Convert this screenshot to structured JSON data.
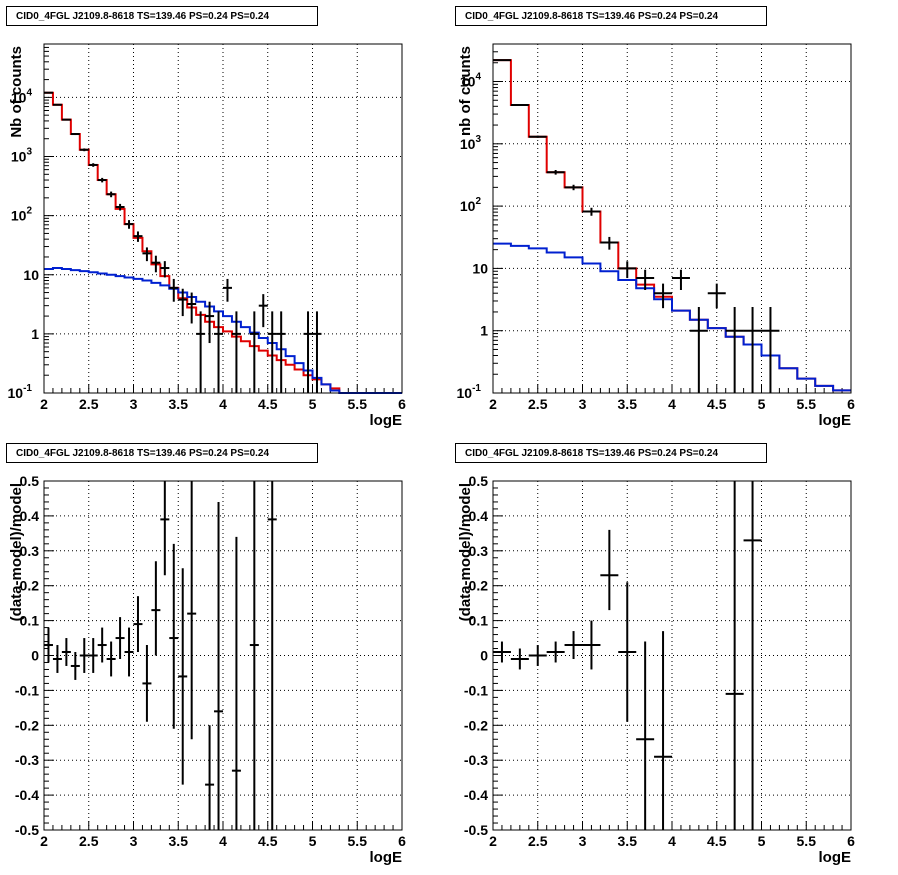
{
  "colors": {
    "data": "#000000",
    "total_model": "#e00000",
    "background_model": "#0020d0",
    "grid": "#000000"
  },
  "chart_data": [
    {
      "type": "line",
      "panel": "top-left",
      "title": "CID0_4FGL J2109.8-8618 TS=139.46 PS=0.24 PS=0.24",
      "xlabel": "logE",
      "ylabel": "Nb of counts",
      "xlim": [
        2,
        6
      ],
      "ylim": [
        0.1,
        80000
      ],
      "log_y": true,
      "grid": true,
      "x_ticks": [
        "2",
        "2.5",
        "3",
        "3.5",
        "4",
        "4.5",
        "5",
        "5.5",
        "6"
      ],
      "y_ticks": [
        "10^-1",
        "1",
        "10",
        "10^2",
        "10^3",
        "10^4"
      ],
      "series": [
        {
          "role": "total_model",
          "style": "step",
          "edges": [
            2.0,
            2.1,
            2.2,
            2.3,
            2.4,
            2.5,
            2.6,
            2.7,
            2.8,
            2.9,
            3.0,
            3.1,
            3.2,
            3.3,
            3.4,
            3.5,
            3.6,
            3.7,
            3.8,
            3.9,
            4.0,
            4.1,
            4.2,
            4.3,
            4.4,
            4.5,
            4.6,
            4.7,
            4.8,
            4.9,
            5.0,
            5.1,
            5.2,
            5.3,
            5.4,
            5.5,
            5.6,
            5.7,
            5.8,
            5.9,
            6.0
          ],
          "values": [
            12000,
            7500,
            4200,
            2400,
            1300,
            720,
            400,
            230,
            130,
            72,
            42,
            25,
            15,
            9.5,
            6,
            4,
            2.8,
            2.1,
            1.6,
            1.3,
            1.1,
            0.9,
            0.75,
            0.62,
            0.52,
            0.43,
            0.36,
            0.3,
            0.25,
            0.2,
            0.17,
            0.14,
            0.12,
            0.1,
            0.1,
            0.1,
            0.1,
            0.1,
            0.1,
            0.1
          ]
        },
        {
          "role": "background_model",
          "style": "step",
          "edges": [
            2.0,
            2.1,
            2.2,
            2.3,
            2.4,
            2.5,
            2.6,
            2.7,
            2.8,
            2.9,
            3.0,
            3.1,
            3.2,
            3.3,
            3.4,
            3.5,
            3.6,
            3.7,
            3.8,
            3.9,
            4.0,
            4.1,
            4.2,
            4.3,
            4.4,
            4.5,
            4.6,
            4.7,
            4.8,
            4.9,
            5.0,
            5.1,
            5.2,
            5.3,
            5.4,
            5.5,
            5.6,
            5.7,
            5.8,
            5.9,
            6.0
          ],
          "values": [
            12.5,
            13,
            12.5,
            12,
            11.5,
            11,
            10.5,
            10,
            9.5,
            9,
            8.5,
            8,
            7.3,
            6.6,
            5.8,
            5,
            4.2,
            3.5,
            2.9,
            2.4,
            2,
            1.6,
            1.3,
            1.05,
            0.85,
            0.7,
            0.55,
            0.42,
            0.32,
            0.24,
            0.18,
            0.14,
            0.11,
            0.1,
            0.1,
            0.1,
            0.1,
            0.1,
            0.1,
            0.1
          ]
        },
        {
          "role": "data",
          "style": "errorbar",
          "points": [
            {
              "x": 2.05,
              "y": 12000,
              "lo": 11800,
              "hi": 12200
            },
            {
              "x": 2.15,
              "y": 7500,
              "lo": 7350,
              "hi": 7650
            },
            {
              "x": 2.25,
              "y": 4200,
              "lo": 4080,
              "hi": 4320
            },
            {
              "x": 2.35,
              "y": 2400,
              "lo": 2310,
              "hi": 2490
            },
            {
              "x": 2.45,
              "y": 1300,
              "lo": 1230,
              "hi": 1370
            },
            {
              "x": 2.55,
              "y": 720,
              "lo": 670,
              "hi": 770
            },
            {
              "x": 2.65,
              "y": 400,
              "lo": 365,
              "hi": 435
            },
            {
              "x": 2.75,
              "y": 230,
              "lo": 205,
              "hi": 255
            },
            {
              "x": 2.85,
              "y": 140,
              "lo": 122,
              "hi": 158
            },
            {
              "x": 2.95,
              "y": 72,
              "lo": 60,
              "hi": 84
            },
            {
              "x": 3.05,
              "y": 45,
              "lo": 36,
              "hi": 54
            },
            {
              "x": 3.15,
              "y": 23,
              "lo": 17,
              "hi": 29
            },
            {
              "x": 3.25,
              "y": 16,
              "lo": 11,
              "hi": 21
            },
            {
              "x": 3.35,
              "y": 13,
              "lo": 9,
              "hi": 17
            },
            {
              "x": 3.45,
              "y": 6,
              "lo": 3.5,
              "hi": 8.5
            },
            {
              "x": 3.55,
              "y": 3.8,
              "lo": 2,
              "hi": 5.8
            },
            {
              "x": 3.65,
              "y": 3.2,
              "lo": 1.5,
              "hi": 5
            },
            {
              "x": 3.75,
              "y": 1,
              "lo": 0.1,
              "hi": 2.4
            },
            {
              "x": 3.85,
              "y": 2,
              "lo": 0.7,
              "hi": 3.5
            },
            {
              "x": 3.95,
              "y": 1,
              "lo": 0.1,
              "hi": 2.4
            },
            {
              "x": 4.05,
              "y": 6,
              "lo": 3.5,
              "hi": 8.5
            },
            {
              "x": 4.15,
              "y": 1,
              "lo": 0.1,
              "hi": 2.4
            },
            {
              "x": 4.35,
              "y": 1,
              "lo": 0.1,
              "hi": 2.4
            },
            {
              "x": 4.45,
              "y": 3,
              "lo": 1.3,
              "hi": 4.7
            },
            {
              "x": 4.55,
              "y": 1,
              "lo": 0.1,
              "hi": 2.4
            },
            {
              "x": 4.65,
              "y": 1,
              "lo": 0.1,
              "hi": 2.4
            },
            {
              "x": 4.95,
              "y": 1,
              "lo": 0.1,
              "hi": 2.4
            },
            {
              "x": 5.05,
              "y": 1,
              "lo": 0.1,
              "hi": 2.4
            }
          ]
        }
      ]
    },
    {
      "type": "line",
      "panel": "top-right",
      "title": "CID0_4FGL J2109.8-8618 TS=139.46 PS=0.24 PS=0.24",
      "xlabel": "logE",
      "ylabel": "nb of counts",
      "xlim": [
        2,
        6
      ],
      "ylim": [
        0.1,
        40000
      ],
      "log_y": true,
      "grid": true,
      "x_ticks": [
        "2",
        "2.5",
        "3",
        "3.5",
        "4",
        "4.5",
        "5",
        "5.5",
        "6"
      ],
      "y_ticks": [
        "10^-1",
        "1",
        "10",
        "10^2",
        "10^3",
        "10^4"
      ],
      "series": [
        {
          "role": "total_model",
          "style": "step",
          "edges": [
            2.0,
            2.2,
            2.4,
            2.6,
            2.8,
            3.0,
            3.2,
            3.4,
            3.6,
            3.8,
            4.0,
            4.2,
            4.4,
            4.6,
            4.8,
            5.0,
            5.2,
            5.4,
            5.6,
            5.8,
            6.0
          ],
          "values": [
            22000,
            4200,
            1300,
            350,
            200,
            82,
            26,
            10,
            5.5,
            3.5,
            2.1,
            1.5,
            1.1,
            0.8,
            0.6,
            0.4,
            0.25,
            0.17,
            0.13,
            0.11
          ]
        },
        {
          "role": "background_model",
          "style": "step",
          "edges": [
            2.0,
            2.2,
            2.4,
            2.6,
            2.8,
            3.0,
            3.2,
            3.4,
            3.6,
            3.8,
            4.0,
            4.2,
            4.4,
            4.6,
            4.8,
            5.0,
            5.2,
            5.4,
            5.6,
            5.8,
            6.0
          ],
          "values": [
            25,
            23,
            21,
            18,
            15,
            12,
            9,
            6.5,
            4.8,
            3.2,
            2.1,
            1.5,
            1.1,
            0.8,
            0.6,
            0.4,
            0.25,
            0.17,
            0.13,
            0.11
          ]
        },
        {
          "role": "data",
          "style": "errorbar",
          "points": [
            {
              "x": 2.1,
              "y": 22000,
              "lo": 21800,
              "hi": 22200
            },
            {
              "x": 2.3,
              "y": 4200,
              "lo": 4100,
              "hi": 4300
            },
            {
              "x": 2.5,
              "y": 1300,
              "lo": 1250,
              "hi": 1350
            },
            {
              "x": 2.7,
              "y": 350,
              "lo": 320,
              "hi": 380
            },
            {
              "x": 2.9,
              "y": 200,
              "lo": 180,
              "hi": 220
            },
            {
              "x": 3.1,
              "y": 82,
              "lo": 70,
              "hi": 94
            },
            {
              "x": 3.3,
              "y": 26,
              "lo": 20,
              "hi": 32
            },
            {
              "x": 3.5,
              "y": 10,
              "lo": 7,
              "hi": 13
            },
            {
              "x": 3.7,
              "y": 7,
              "lo": 4.5,
              "hi": 9.5
            },
            {
              "x": 3.9,
              "y": 4,
              "lo": 2.3,
              "hi": 5.7
            },
            {
              "x": 4.1,
              "y": 7,
              "lo": 4.5,
              "hi": 9.5
            },
            {
              "x": 4.3,
              "y": 1,
              "lo": 0.1,
              "hi": 2.4
            },
            {
              "x": 4.5,
              "y": 4,
              "lo": 2.3,
              "hi": 5.7
            },
            {
              "x": 4.7,
              "y": 1,
              "lo": 0.1,
              "hi": 2.4
            },
            {
              "x": 4.9,
              "y": 1,
              "lo": 0.1,
              "hi": 2.4
            },
            {
              "x": 5.1,
              "y": 1,
              "lo": 0.1,
              "hi": 2.4
            }
          ]
        }
      ]
    },
    {
      "type": "scatter",
      "panel": "bottom-left",
      "title": "CID0_4FGL J2109.8-8618 TS=139.46 PS=0.24 PS=0.24",
      "xlabel": "logE",
      "ylabel": "(data-model)/model",
      "xlim": [
        2,
        6
      ],
      "ylim": [
        -0.5,
        0.5
      ],
      "log_y": false,
      "grid": true,
      "x_ticks": [
        "2",
        "2.5",
        "3",
        "3.5",
        "4",
        "4.5",
        "5",
        "5.5",
        "6"
      ],
      "y_ticks": [
        "-0.5",
        "-0.4",
        "-0.3",
        "-0.2",
        "-0.1",
        "0",
        "0.1",
        "0.2",
        "0.3",
        "0.4",
        "0.5"
      ],
      "series": [
        {
          "role": "data",
          "style": "errorbar",
          "points": [
            {
              "x": 2.05,
              "y": 0.03,
              "lo": -0.02,
              "hi": 0.08
            },
            {
              "x": 2.15,
              "y": -0.01,
              "lo": -0.05,
              "hi": 0.03
            },
            {
              "x": 2.25,
              "y": 0.01,
              "lo": -0.03,
              "hi": 0.05
            },
            {
              "x": 2.35,
              "y": -0.03,
              "lo": -0.07,
              "hi": 0.01
            },
            {
              "x": 2.45,
              "y": 0.0,
              "lo": -0.05,
              "hi": 0.05
            },
            {
              "x": 2.55,
              "y": 0.0,
              "lo": -0.05,
              "hi": 0.05
            },
            {
              "x": 2.65,
              "y": 0.03,
              "lo": -0.02,
              "hi": 0.08
            },
            {
              "x": 2.75,
              "y": -0.01,
              "lo": -0.06,
              "hi": 0.04
            },
            {
              "x": 2.85,
              "y": 0.05,
              "lo": -0.01,
              "hi": 0.11
            },
            {
              "x": 2.95,
              "y": 0.01,
              "lo": -0.06,
              "hi": 0.08
            },
            {
              "x": 3.05,
              "y": 0.09,
              "lo": 0.01,
              "hi": 0.17
            },
            {
              "x": 3.15,
              "y": -0.08,
              "lo": -0.19,
              "hi": 0.03
            },
            {
              "x": 3.25,
              "y": 0.13,
              "lo": 0.0,
              "hi": 0.27
            },
            {
              "x": 3.35,
              "y": 0.39,
              "lo": 0.23,
              "hi": 0.5
            },
            {
              "x": 3.45,
              "y": 0.05,
              "lo": -0.21,
              "hi": 0.32
            },
            {
              "x": 3.55,
              "y": -0.06,
              "lo": -0.37,
              "hi": 0.25
            },
            {
              "x": 3.65,
              "y": 0.12,
              "lo": -0.24,
              "hi": 0.5
            },
            {
              "x": 3.85,
              "y": -0.37,
              "lo": -0.5,
              "hi": -0.2
            },
            {
              "x": 3.95,
              "y": -0.16,
              "lo": -0.5,
              "hi": 0.44
            },
            {
              "x": 4.15,
              "y": -0.33,
              "lo": -0.5,
              "hi": 0.34
            },
            {
              "x": 4.35,
              "y": 0.03,
              "lo": -0.5,
              "hi": 0.5
            },
            {
              "x": 4.55,
              "y": 0.39,
              "lo": -0.5,
              "hi": 0.5
            }
          ]
        }
      ]
    },
    {
      "type": "scatter",
      "panel": "bottom-right",
      "title": "CID0_4FGL J2109.8-8618 TS=139.46 PS=0.24 PS=0.24",
      "xlabel": "logE",
      "ylabel": "(data-model)/model",
      "xlim": [
        2,
        6
      ],
      "ylim": [
        -0.5,
        0.5
      ],
      "log_y": false,
      "grid": true,
      "x_ticks": [
        "2",
        "2.5",
        "3",
        "3.5",
        "4",
        "4.5",
        "5",
        "5.5",
        "6"
      ],
      "y_ticks": [
        "-0.5",
        "-0.4",
        "-0.3",
        "-0.2",
        "-0.1",
        "0",
        "0.1",
        "0.2",
        "0.3",
        "0.4",
        "0.5"
      ],
      "series": [
        {
          "role": "data",
          "style": "errorbar",
          "points": [
            {
              "x": 2.1,
              "y": 0.01,
              "lo": -0.02,
              "hi": 0.04
            },
            {
              "x": 2.3,
              "y": -0.01,
              "lo": -0.04,
              "hi": 0.02
            },
            {
              "x": 2.5,
              "y": 0.0,
              "lo": -0.03,
              "hi": 0.03
            },
            {
              "x": 2.7,
              "y": 0.01,
              "lo": -0.02,
              "hi": 0.04
            },
            {
              "x": 2.9,
              "y": 0.03,
              "lo": -0.01,
              "hi": 0.07
            },
            {
              "x": 3.1,
              "y": 0.03,
              "lo": -0.04,
              "hi": 0.1
            },
            {
              "x": 3.3,
              "y": 0.23,
              "lo": 0.13,
              "hi": 0.36
            },
            {
              "x": 3.5,
              "y": 0.01,
              "lo": -0.19,
              "hi": 0.21
            },
            {
              "x": 3.7,
              "y": -0.24,
              "lo": -0.5,
              "hi": 0.04
            },
            {
              "x": 3.9,
              "y": -0.29,
              "lo": -0.5,
              "hi": 0.07
            },
            {
              "x": 4.7,
              "y": -0.11,
              "lo": -0.5,
              "hi": 0.5
            },
            {
              "x": 4.9,
              "y": 0.33,
              "lo": -0.5,
              "hi": 0.5
            }
          ]
        }
      ]
    }
  ]
}
